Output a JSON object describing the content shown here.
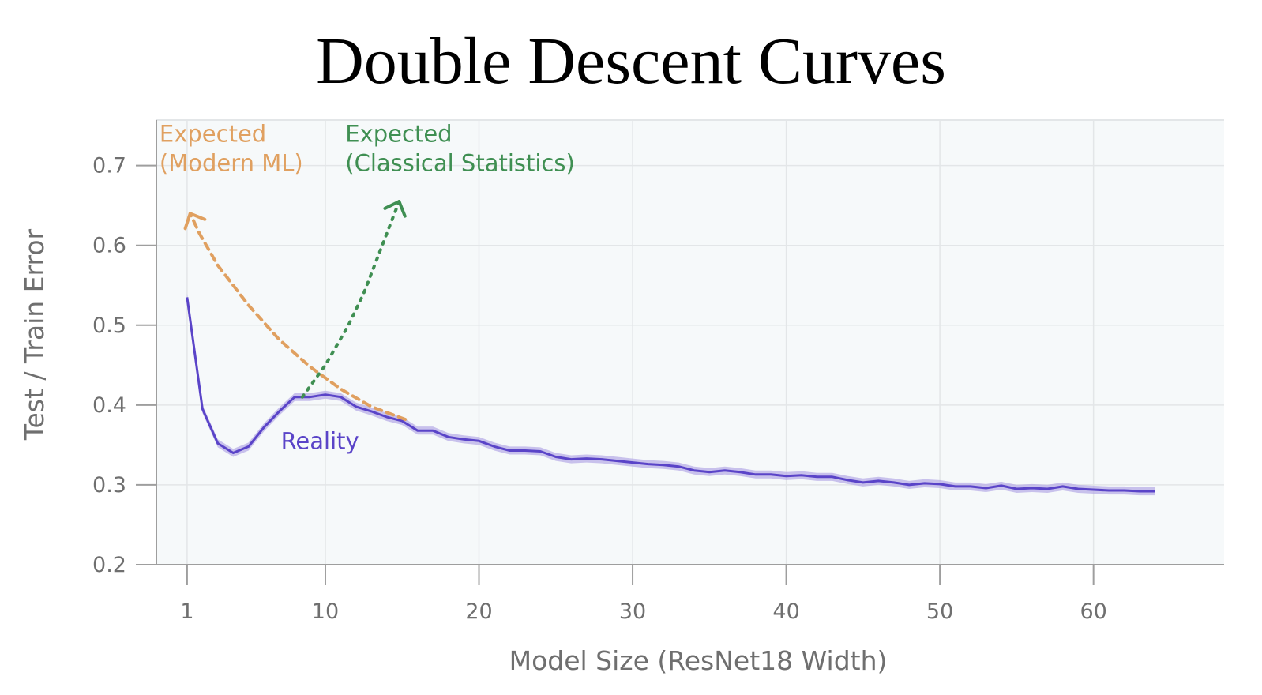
{
  "chart_data": {
    "type": "line",
    "title": "Double Descent Curves",
    "xlabel": "Model Size (ResNet18 Width)",
    "ylabel": "Test / Train Error",
    "xlim": [
      -1,
      68.5
    ],
    "ylim": [
      0.2,
      0.757
    ],
    "xticks": [
      1,
      10,
      20,
      30,
      40,
      50,
      60
    ],
    "yticks": [
      0.2,
      0.3,
      0.4,
      0.5,
      0.6,
      0.7
    ],
    "grid": true,
    "colors": {
      "background": "#f6f9fa",
      "grid": "#e3e6e8",
      "axis": "#9e9e9e",
      "reality": "#5a44c8",
      "reality_band": "#b5aae6",
      "modern_ml": "#e0a060",
      "classical": "#3f8f52"
    },
    "series": [
      {
        "name": "Reality",
        "style": "solid",
        "x": [
          1,
          2,
          3,
          4,
          5,
          6,
          7,
          8,
          9,
          10,
          11,
          12,
          13,
          14,
          15,
          16,
          17,
          18,
          19,
          20,
          21,
          22,
          23,
          24,
          25,
          26,
          27,
          28,
          29,
          30,
          31,
          32,
          33,
          34,
          35,
          36,
          37,
          38,
          39,
          40,
          41,
          42,
          43,
          44,
          45,
          46,
          47,
          48,
          49,
          50,
          51,
          52,
          53,
          54,
          55,
          56,
          57,
          58,
          59,
          60,
          61,
          62,
          63,
          64
        ],
        "y": [
          0.535,
          0.395,
          0.352,
          0.34,
          0.348,
          0.372,
          0.392,
          0.41,
          0.41,
          0.413,
          0.41,
          0.398,
          0.392,
          0.385,
          0.38,
          0.368,
          0.368,
          0.36,
          0.357,
          0.355,
          0.348,
          0.343,
          0.343,
          0.342,
          0.335,
          0.332,
          0.333,
          0.332,
          0.33,
          0.328,
          0.326,
          0.325,
          0.323,
          0.318,
          0.316,
          0.318,
          0.316,
          0.313,
          0.313,
          0.311,
          0.312,
          0.31,
          0.31,
          0.306,
          0.303,
          0.305,
          0.303,
          0.3,
          0.302,
          0.301,
          0.298,
          0.298,
          0.296,
          0.299,
          0.295,
          0.296,
          0.295,
          0.298,
          0.295,
          0.294,
          0.293,
          0.293,
          0.292,
          0.292
        ],
        "band": 0.005
      },
      {
        "name": "Expected (Modern ML)",
        "style": "dashed",
        "x": [
          15.2,
          13,
          11,
          9,
          7,
          5,
          3,
          1.8,
          1.2
        ],
        "y": [
          0.382,
          0.398,
          0.42,
          0.448,
          0.482,
          0.525,
          0.575,
          0.615,
          0.64
        ],
        "arrow": "end"
      },
      {
        "name": "Expected (Classical Statistics)",
        "style": "dotted",
        "x": [
          8.5,
          10,
          11.5,
          12.5,
          13.5,
          14.2,
          14.8
        ],
        "y": [
          0.41,
          0.45,
          0.5,
          0.54,
          0.59,
          0.625,
          0.655
        ],
        "arrow": "end"
      }
    ],
    "annotations": [
      {
        "series": "Expected (Modern ML)",
        "lines": [
          "Expected",
          "(Modern ML)"
        ],
        "x": -0.8,
        "y": 0.73,
        "color": "#e0a060"
      },
      {
        "series": "Expected (Classical Statistics)",
        "lines": [
          "Expected",
          "(Classical Statistics)"
        ],
        "x": 11.3,
        "y": 0.73,
        "color": "#3f8f52"
      },
      {
        "series": "Reality",
        "lines": [
          "Reality"
        ],
        "x": 7.1,
        "y": 0.345,
        "color": "#5a44c8"
      }
    ]
  }
}
